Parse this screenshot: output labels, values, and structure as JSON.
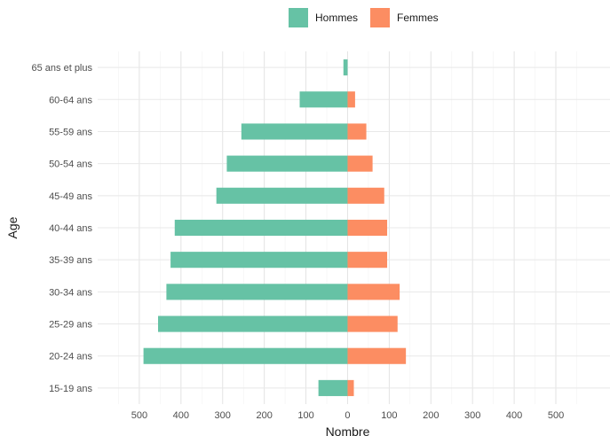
{
  "chart_data": {
    "type": "bar",
    "orientation": "horizontal",
    "stacking": "diverging",
    "title": "",
    "xlabel": "Nombre",
    "ylabel": "Age",
    "categories": [
      "15-19 ans",
      "20-24 ans",
      "25-29 ans",
      "30-34 ans",
      "35-39 ans",
      "40-44 ans",
      "45-49 ans",
      "50-54 ans",
      "55-59 ans",
      "60-64 ans",
      "65 ans et plus"
    ],
    "series": [
      {
        "name": "Hommes",
        "color": "#66c2a5",
        "values": [
          -70,
          -490,
          -455,
          -435,
          -425,
          -415,
          -315,
          -290,
          -255,
          -115,
          -10
        ]
      },
      {
        "name": "Femmes",
        "color": "#fc8d62",
        "values": [
          15,
          140,
          120,
          125,
          95,
          95,
          88,
          60,
          45,
          18,
          0
        ]
      }
    ],
    "xlim": [
      -600,
      630
    ],
    "x_ticks": [
      -500,
      -400,
      -300,
      -200,
      -100,
      0,
      100,
      200,
      300,
      400,
      500
    ],
    "x_tick_labels": [
      "500",
      "400",
      "300",
      "200",
      "100",
      "0",
      "100",
      "200",
      "300",
      "400",
      "500"
    ],
    "grid": true,
    "legend_position": "top"
  }
}
